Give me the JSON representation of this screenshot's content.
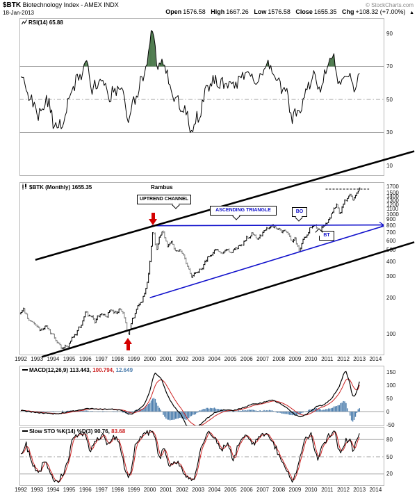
{
  "header": {
    "symbol": "$BTK",
    "title": "Biotechnology Index - AMEX INDX",
    "date": "18-Jan-2013",
    "copyright": "© StockCharts.com",
    "quote": {
      "open_label": "Open",
      "open": "1576.58",
      "high_label": "High",
      "high": "1667.26",
      "low_label": "Low",
      "low": "1576.58",
      "close_label": "Close",
      "close": "1655.35",
      "chg_label": "Chg",
      "chg": "+108.32 (+7.00%)",
      "direction": "▲"
    }
  },
  "panels": {
    "rsi": {
      "label": "RSI(14) 65.88"
    },
    "price": {
      "label": "$BTK (Monthly) 1655.35"
    },
    "macd": {
      "name": "MACD(12,26,9)",
      "macd_value": "113.443,",
      "signal_value": "100.794,",
      "hist_value": "12.649"
    },
    "sto": {
      "name": "Slow STO %K(14) %D(3)",
      "k_value": "90.76,",
      "d_value": "83.68"
    }
  },
  "annotations": {
    "rambus": "Rambus",
    "uptrend": "UPTREND CHANNEL",
    "triangle": "ASCENDING TRIANGLE",
    "bo": "BO",
    "bt": "BT"
  },
  "colors": {
    "line_black": "#000000",
    "signal_red": "#cc2222",
    "hist_blue": "#4d7ead",
    "overbought_green": "#4d7a4d",
    "annotation_blue": "#1111cc",
    "bar_down_gray": "#7d7d7d",
    "grid_gray": "#a0a0a0",
    "arrow_red": "#d40000"
  },
  "chart_data": [
    {
      "type": "line",
      "name": "RSI(14)",
      "current": 65.88,
      "ylim": [
        10,
        90
      ],
      "yticks": [
        90,
        70,
        50,
        30,
        10
      ],
      "bands": {
        "overbought": 70,
        "mid": 50,
        "oversold": 30
      },
      "x_range": [
        1992,
        2013.04
      ],
      "keyframes": [
        [
          1992.0,
          62
        ],
        [
          1992.3,
          58
        ],
        [
          1992.8,
          45
        ],
        [
          1993.2,
          40
        ],
        [
          1993.6,
          52
        ],
        [
          1994.0,
          36
        ],
        [
          1994.5,
          33
        ],
        [
          1995.0,
          50
        ],
        [
          1995.5,
          62
        ],
        [
          1996.05,
          72
        ],
        [
          1996.4,
          55
        ],
        [
          1997.0,
          62
        ],
        [
          1997.5,
          52
        ],
        [
          1998.2,
          58
        ],
        [
          1998.65,
          36
        ],
        [
          1999.2,
          55
        ],
        [
          1999.6,
          65
        ],
        [
          1999.9,
          78
        ],
        [
          2000.2,
          93
        ],
        [
          2000.5,
          68
        ],
        [
          2000.85,
          74
        ],
        [
          2001.2,
          58
        ],
        [
          2001.6,
          50
        ],
        [
          2002.1,
          44
        ],
        [
          2002.6,
          33
        ],
        [
          2003.0,
          40
        ],
        [
          2003.6,
          58
        ],
        [
          2004.2,
          62
        ],
        [
          2004.8,
          57
        ],
        [
          2005.4,
          60
        ],
        [
          2006.1,
          68
        ],
        [
          2006.7,
          58
        ],
        [
          2007.3,
          72
        ],
        [
          2007.9,
          62
        ],
        [
          2008.5,
          52
        ],
        [
          2008.8,
          38
        ],
        [
          2009.25,
          42
        ],
        [
          2009.75,
          58
        ],
        [
          2010.2,
          64
        ],
        [
          2010.45,
          54
        ],
        [
          2011.0,
          68
        ],
        [
          2011.45,
          76
        ],
        [
          2011.8,
          56
        ],
        [
          2012.2,
          66
        ],
        [
          2012.6,
          58
        ],
        [
          2013.04,
          65.88
        ]
      ]
    },
    {
      "type": "ohlc-bar",
      "name": "$BTK Monthly",
      "scale": "log",
      "ylim": [
        67,
        1850
      ],
      "yticks": [
        1700,
        1500,
        1400,
        1300,
        1200,
        1100,
        1000,
        900,
        800,
        700,
        600,
        500,
        400,
        300,
        200,
        100
      ],
      "x_axis_labels": [
        "1992",
        "1993",
        "1994",
        "1995",
        "1996",
        "1997",
        "1998",
        "1999",
        "2000",
        "2001",
        "2002",
        "2003",
        "2004",
        "2005",
        "2006",
        "2007",
        "2008",
        "2009",
        "2010",
        "2011",
        "2012",
        "2013",
        "2014"
      ],
      "last_bar": {
        "open": 1576.58,
        "high": 1667.26,
        "low": 1576.58,
        "close": 1655.35
      },
      "prev_close": 1547.03,
      "close_keyframes": [
        [
          1992.0,
          148
        ],
        [
          1992.17,
          162
        ],
        [
          1992.5,
          128
        ],
        [
          1992.9,
          120
        ],
        [
          1993.2,
          105
        ],
        [
          1993.5,
          118
        ],
        [
          1993.9,
          100
        ],
        [
          1994.2,
          88
        ],
        [
          1994.5,
          76
        ],
        [
          1994.9,
          80
        ],
        [
          1995.3,
          95
        ],
        [
          1995.7,
          118
        ],
        [
          1996.05,
          152
        ],
        [
          1996.3,
          140
        ],
        [
          1996.6,
          128
        ],
        [
          1997.0,
          150
        ],
        [
          1997.3,
          142
        ],
        [
          1997.6,
          158
        ],
        [
          1997.9,
          148
        ],
        [
          1998.2,
          165
        ],
        [
          1998.45,
          130
        ],
        [
          1998.65,
          98
        ],
        [
          1998.9,
          130
        ],
        [
          1999.2,
          165
        ],
        [
          1999.5,
          185
        ],
        [
          1999.75,
          240
        ],
        [
          1999.95,
          330
        ],
        [
          2000.2,
          800
        ],
        [
          2000.4,
          480
        ],
        [
          2000.6,
          650
        ],
        [
          2000.85,
          720
        ],
        [
          2001.1,
          520
        ],
        [
          2001.35,
          590
        ],
        [
          2001.6,
          480
        ],
        [
          2001.8,
          520
        ],
        [
          2002.1,
          450
        ],
        [
          2002.4,
          340
        ],
        [
          2002.6,
          300
        ],
        [
          2002.9,
          320
        ],
        [
          2003.2,
          350
        ],
        [
          2003.6,
          440
        ],
        [
          2003.9,
          470
        ],
        [
          2004.2,
          510
        ],
        [
          2004.5,
          470
        ],
        [
          2004.8,
          500
        ],
        [
          2005.1,
          480
        ],
        [
          2005.4,
          530
        ],
        [
          2005.8,
          580
        ],
        [
          2006.1,
          650
        ],
        [
          2006.4,
          680
        ],
        [
          2006.7,
          620
        ],
        [
          2007.0,
          700
        ],
        [
          2007.3,
          760
        ],
        [
          2007.6,
          800
        ],
        [
          2007.9,
          760
        ],
        [
          2008.2,
          700
        ],
        [
          2008.5,
          720
        ],
        [
          2008.8,
          580
        ],
        [
          2009.0,
          620
        ],
        [
          2009.25,
          485
        ],
        [
          2009.5,
          600
        ],
        [
          2009.75,
          680
        ],
        [
          2010.0,
          780
        ],
        [
          2010.2,
          830
        ],
        [
          2010.45,
          720
        ],
        [
          2010.7,
          780
        ],
        [
          2010.95,
          850
        ],
        [
          2011.2,
          950
        ],
        [
          2011.45,
          1120
        ],
        [
          2011.6,
          1190
        ],
        [
          2011.8,
          1000
        ],
        [
          2012.0,
          1230
        ],
        [
          2012.2,
          1380
        ],
        [
          2012.45,
          1450
        ],
        [
          2012.6,
          1350
        ],
        [
          2012.8,
          1480
        ],
        [
          2012.92,
          1547
        ],
        [
          2013.04,
          1655.35
        ]
      ],
      "annotations": {
        "channel_lines": [
          {
            "x1": 1992.9,
            "p1": 415,
            "x2": 2016.4,
            "p2": 3356
          },
          {
            "x1": 1993.3,
            "p1": 64,
            "x2": 2016.4,
            "p2": 583
          }
        ],
        "triangle_lines": [
          {
            "x1": 2000.1,
            "p1": 800,
            "x2": 2014.5,
            "p2": 812,
            "arrowhead": true
          },
          {
            "x1": 2000.0,
            "p1": 200,
            "x2": 2014.5,
            "p2": 795,
            "arrowhead": false
          }
        ],
        "dashed_level": {
          "price": 1620,
          "x1": 2010.9,
          "x2": 2013.6
        },
        "arrows": [
          {
            "dir": "down",
            "year": 2000.2,
            "price": 800
          },
          {
            "dir": "up",
            "year": 1998.65,
            "price": 96
          }
        ]
      }
    },
    {
      "type": "macd",
      "name": "MACD(12,26,9)",
      "values": {
        "macd": 113.443,
        "signal": 100.794,
        "hist": 12.649
      },
      "ylim": [
        -60,
        170
      ],
      "yticks": [
        150,
        100,
        50,
        0,
        -50
      ],
      "keyframes": [
        [
          1992,
          4
        ],
        [
          1992.8,
          -2
        ],
        [
          1993.5,
          -6
        ],
        [
          1994.2,
          -9
        ],
        [
          1995,
          0
        ],
        [
          1995.8,
          8
        ],
        [
          1996.3,
          12
        ],
        [
          1997,
          8
        ],
        [
          1997.6,
          10
        ],
        [
          1998.2,
          6
        ],
        [
          1998.8,
          -12
        ],
        [
          1999.3,
          8
        ],
        [
          1999.7,
          30
        ],
        [
          2000.0,
          80
        ],
        [
          2000.3,
          150
        ],
        [
          2000.7,
          125
        ],
        [
          2001.1,
          60
        ],
        [
          2001.5,
          20
        ],
        [
          2001.9,
          -10
        ],
        [
          2002.3,
          -55
        ],
        [
          2002.9,
          -62
        ],
        [
          2003.5,
          -28
        ],
        [
          2004.0,
          -5
        ],
        [
          2004.6,
          6
        ],
        [
          2005.2,
          4
        ],
        [
          2005.8,
          14
        ],
        [
          2006.3,
          26
        ],
        [
          2006.9,
          32
        ],
        [
          2007.5,
          44
        ],
        [
          2008.0,
          34
        ],
        [
          2008.5,
          15
        ],
        [
          2008.9,
          -8
        ],
        [
          2009.3,
          -22
        ],
        [
          2009.8,
          -8
        ],
        [
          2010.3,
          18
        ],
        [
          2010.8,
          24
        ],
        [
          2011.3,
          52
        ],
        [
          2011.7,
          88
        ],
        [
          2012.0,
          138
        ],
        [
          2012.15,
          155
        ],
        [
          2012.4,
          110
        ],
        [
          2012.55,
          62
        ],
        [
          2012.7,
          58
        ],
        [
          2012.85,
          80
        ],
        [
          2013.04,
          113.443
        ]
      ]
    },
    {
      "type": "stochastic",
      "name": "Slow STO %K(14) %D(3)",
      "values": {
        "k": 90.76,
        "d": 83.68
      },
      "ylim": [
        0,
        100
      ],
      "yticks": [
        80,
        50,
        20
      ],
      "x_axis_labels": [
        "1992",
        "1993",
        "1994",
        "1995",
        "1996",
        "1997",
        "1998",
        "1999",
        "2000",
        "2001",
        "2002",
        "2003",
        "2004",
        "2005",
        "2006",
        "2007",
        "2008",
        "2009",
        "2010",
        "2011",
        "2012",
        "2013",
        "2014"
      ],
      "keyframes": [
        [
          1992.0,
          55
        ],
        [
          1992.3,
          75
        ],
        [
          1992.7,
          35
        ],
        [
          1993.1,
          20
        ],
        [
          1993.5,
          45
        ],
        [
          1993.9,
          15
        ],
        [
          1994.3,
          8
        ],
        [
          1994.8,
          30
        ],
        [
          1995.2,
          80
        ],
        [
          1995.6,
          90
        ],
        [
          1996.0,
          88
        ],
        [
          1996.3,
          60
        ],
        [
          1996.7,
          80
        ],
        [
          1997.1,
          88
        ],
        [
          1997.4,
          70
        ],
        [
          1997.8,
          85
        ],
        [
          1998.1,
          75
        ],
        [
          1998.5,
          25
        ],
        [
          1998.7,
          8
        ],
        [
          1999.1,
          70
        ],
        [
          1999.5,
          88
        ],
        [
          2000.0,
          92
        ],
        [
          2000.3,
          85
        ],
        [
          2000.6,
          45
        ],
        [
          2000.9,
          70
        ],
        [
          2001.2,
          30
        ],
        [
          2001.6,
          45
        ],
        [
          2002.0,
          25
        ],
        [
          2002.4,
          8
        ],
        [
          2002.8,
          15
        ],
        [
          2003.2,
          70
        ],
        [
          2003.6,
          90
        ],
        [
          2004.0,
          85
        ],
        [
          2004.4,
          60
        ],
        [
          2004.8,
          75
        ],
        [
          2005.2,
          45
        ],
        [
          2005.6,
          80
        ],
        [
          2006.0,
          90
        ],
        [
          2006.4,
          70
        ],
        [
          2006.8,
          85
        ],
        [
          2007.2,
          88
        ],
        [
          2007.6,
          75
        ],
        [
          2008.0,
          55
        ],
        [
          2008.4,
          30
        ],
        [
          2008.8,
          8
        ],
        [
          2009.2,
          35
        ],
        [
          2009.6,
          80
        ],
        [
          2010.0,
          88
        ],
        [
          2010.4,
          45
        ],
        [
          2010.8,
          75
        ],
        [
          2011.2,
          90
        ],
        [
          2011.5,
          92
        ],
        [
          2011.8,
          50
        ],
        [
          2012.1,
          75
        ],
        [
          2012.4,
          85
        ],
        [
          2012.6,
          60
        ],
        [
          2012.85,
          80
        ],
        [
          2013.04,
          90.76
        ]
      ]
    }
  ]
}
